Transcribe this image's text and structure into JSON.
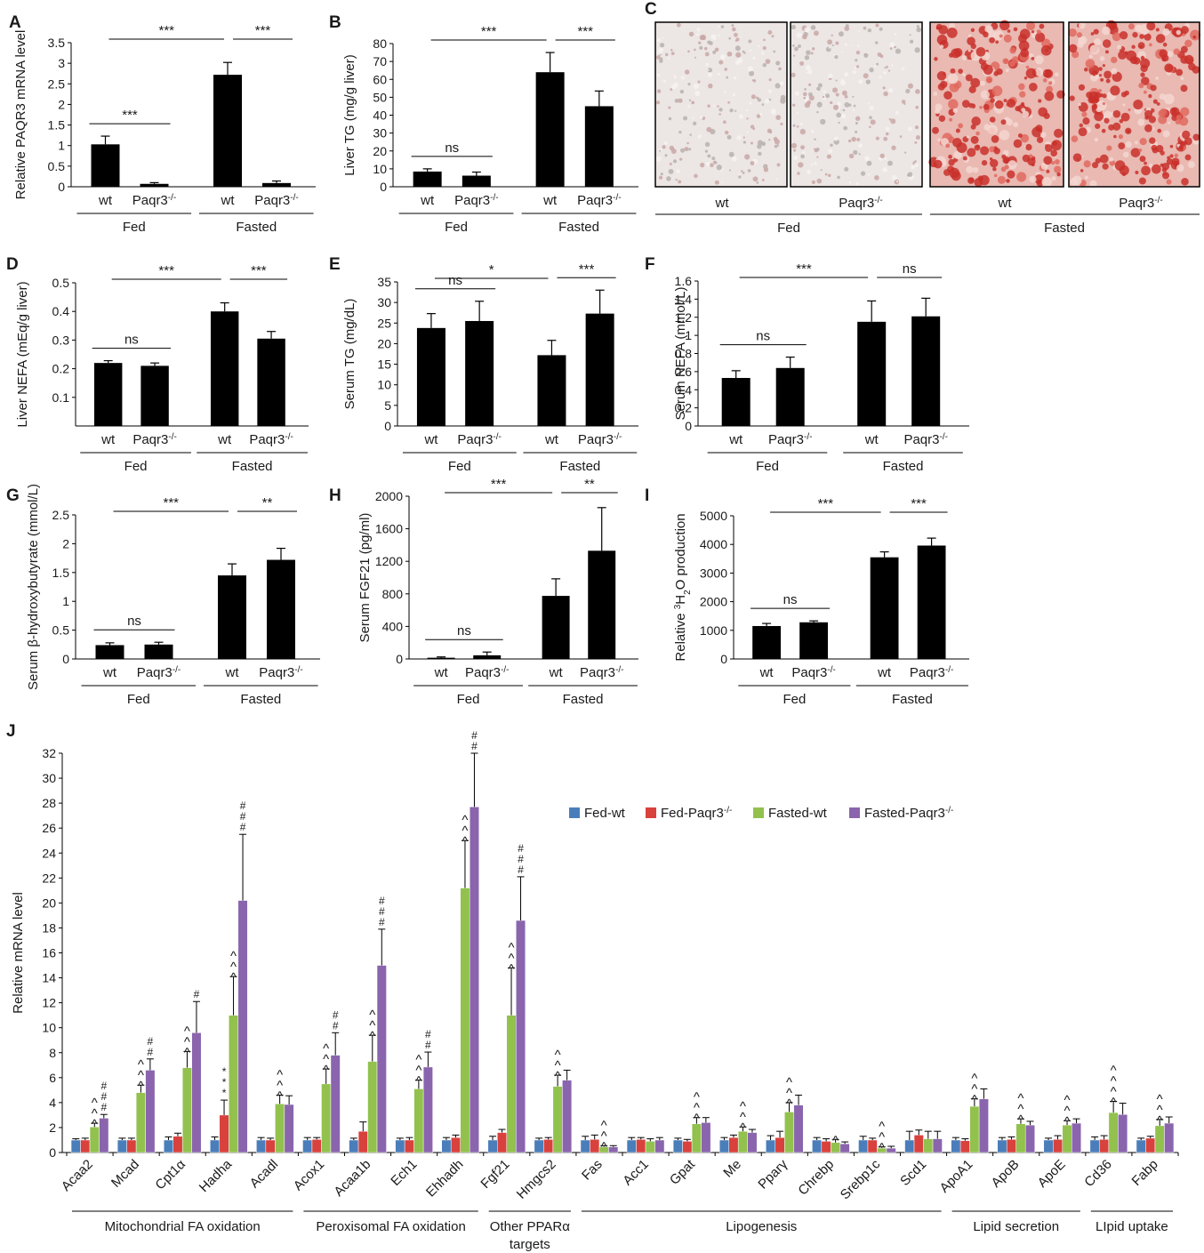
{
  "figure": {
    "group_labels": {
      "fed": "Fed",
      "fasted": "Fasted"
    },
    "genotype_labels": {
      "wt": "wt",
      "ko_base": "Paqr3",
      "ko_sup": "-/-"
    }
  },
  "colors": {
    "bar_black": "#000000",
    "fed_wt": "#4a7ebb",
    "fed_paqr3": "#d9413d",
    "fasted_wt": "#92c14e",
    "fasted_paqr3": "#8a65ad"
  },
  "panel_c": {
    "letter": "C",
    "images": [
      {
        "stain": "light",
        "color_hint": "#d8c8c6"
      },
      {
        "stain": "light",
        "color_hint": "#d6ccca"
      },
      {
        "stain": "heavy",
        "color_hint": "#c8403a"
      },
      {
        "stain": "heavy",
        "color_hint": "#c45a52"
      }
    ]
  },
  "chart_data": [
    {
      "id": "A",
      "type": "bar",
      "letter": "A",
      "ylabel": "Relative PAQR3 mRNA level",
      "ylim": [
        0,
        3.5
      ],
      "yticks": [
        "0",
        "0.5",
        "1",
        "1.5",
        "2",
        "2.5",
        "3",
        "3.5"
      ],
      "categories": [
        "wt",
        "Paqr3-/-",
        "wt",
        "Paqr3-/-"
      ],
      "values": [
        1.03,
        0.07,
        2.72,
        0.09
      ],
      "errors": [
        0.2,
        0.03,
        0.3,
        0.05
      ],
      "significance": [
        {
          "from": 0,
          "to": 1,
          "label": "***"
        },
        {
          "from": 0,
          "to": 2,
          "label": "***"
        },
        {
          "from": 2,
          "to": 3,
          "label": "***"
        }
      ]
    },
    {
      "id": "B",
      "type": "bar",
      "letter": "B",
      "ylabel": "Liver TG (mg/g liver)",
      "ylim": [
        0,
        80
      ],
      "yticks": [
        "0",
        "10",
        "20",
        "30",
        "40",
        "50",
        "60",
        "70",
        "80"
      ],
      "categories": [
        "wt",
        "Paqr3-/-",
        "wt",
        "Paqr3-/-"
      ],
      "values": [
        8.5,
        6.2,
        64,
        45
      ],
      "errors": [
        1.5,
        2,
        11,
        8.5
      ],
      "significance": [
        {
          "from": 0,
          "to": 1,
          "label": "ns"
        },
        {
          "from": 0,
          "to": 2,
          "label": "***"
        },
        {
          "from": 2,
          "to": 3,
          "label": "***"
        }
      ]
    },
    {
      "id": "D",
      "type": "bar",
      "letter": "D",
      "ylabel": "Liver NEFA (mEq/g liver)",
      "ylim": [
        0,
        0.5
      ],
      "yticks": [
        "0.1",
        "0.2",
        "0.3",
        "0.4",
        "0.5"
      ],
      "categories": [
        "wt",
        "Paqr3-/-",
        "wt",
        "Paqr3-/-"
      ],
      "values": [
        0.22,
        0.21,
        0.4,
        0.305
      ],
      "errors": [
        0.008,
        0.01,
        0.03,
        0.025
      ],
      "significance": [
        {
          "from": 0,
          "to": 1,
          "label": "ns"
        },
        {
          "from": 0,
          "to": 2,
          "label": "***"
        },
        {
          "from": 2,
          "to": 3,
          "label": "***"
        }
      ]
    },
    {
      "id": "E",
      "type": "bar",
      "letter": "E",
      "ylabel": "Serum TG (mg/dL)",
      "ylim": [
        0,
        35
      ],
      "yticks": [
        "0",
        "5",
        "10",
        "15",
        "20",
        "25",
        "30",
        "35"
      ],
      "categories": [
        "wt",
        "Paqr3-/-",
        "wt",
        "Paqr3-/-"
      ],
      "values": [
        23.8,
        25.5,
        17.2,
        27.3
      ],
      "errors": [
        3.5,
        4.8,
        3.6,
        5.7
      ],
      "significance": [
        {
          "from": 0,
          "to": 1,
          "label": "ns"
        },
        {
          "from": 0,
          "to": 2,
          "label": "*"
        },
        {
          "from": 2,
          "to": 3,
          "label": "***"
        }
      ]
    },
    {
      "id": "F",
      "type": "bar",
      "letter": "F",
      "ylabel": "Serum NEFA (mmol/L)",
      "ylim": [
        0,
        1.6
      ],
      "yticks": [
        "0",
        "0.2",
        "0.4",
        "0.6",
        "0.8",
        "1",
        "1.2",
        "1.4",
        "1.6"
      ],
      "categories": [
        "wt",
        "Paqr3-/-",
        "wt",
        "Paqr3-/-"
      ],
      "values": [
        0.53,
        0.64,
        1.15,
        1.21
      ],
      "errors": [
        0.08,
        0.12,
        0.23,
        0.2
      ],
      "significance": [
        {
          "from": 0,
          "to": 1,
          "label": "ns"
        },
        {
          "from": 0,
          "to": 2,
          "label": "***"
        },
        {
          "from": 2,
          "to": 3,
          "label": "ns"
        }
      ]
    },
    {
      "id": "G",
      "type": "bar",
      "letter": "G",
      "ylabel": "Serum β-hydroxybutyrate (mmol/L)",
      "ylim": [
        0,
        2.5
      ],
      "yticks": [
        "0",
        "0.5",
        "1",
        "1.5",
        "2",
        "2.5"
      ],
      "categories": [
        "wt",
        "Paqr3-/-",
        "wt",
        "Paqr3-/-"
      ],
      "values": [
        0.24,
        0.25,
        1.45,
        1.72
      ],
      "errors": [
        0.04,
        0.04,
        0.2,
        0.2
      ],
      "significance": [
        {
          "from": 0,
          "to": 1,
          "label": "ns"
        },
        {
          "from": 0,
          "to": 2,
          "label": "***"
        },
        {
          "from": 2,
          "to": 3,
          "label": "**"
        }
      ]
    },
    {
      "id": "H",
      "type": "bar",
      "letter": "H",
      "ylabel": "Serum FGF21 (pg/ml)",
      "ylim": [
        0,
        2000
      ],
      "yticks": [
        "0",
        "400",
        "800",
        "1200",
        "1600",
        "2000"
      ],
      "categories": [
        "wt",
        "Paqr3-/-",
        "wt",
        "Paqr3-/-"
      ],
      "values": [
        15,
        45,
        775,
        1330
      ],
      "errors": [
        10,
        40,
        210,
        530
      ],
      "significance": [
        {
          "from": 0,
          "to": 1,
          "label": "ns"
        },
        {
          "from": 0,
          "to": 2,
          "label": "***"
        },
        {
          "from": 2,
          "to": 3,
          "label": "**"
        }
      ]
    },
    {
      "id": "I",
      "type": "bar",
      "letter": "I",
      "ylabel_parts": [
        "Relative ",
        "3",
        "H",
        "2",
        "O production"
      ],
      "ylim": [
        0,
        5000
      ],
      "yticks": [
        "0",
        "1000",
        "2000",
        "3000",
        "4000",
        "5000"
      ],
      "categories": [
        "wt",
        "Paqr3-/-",
        "wt",
        "Paqr3-/-"
      ],
      "values": [
        1150,
        1280,
        3550,
        3960
      ],
      "errors": [
        90,
        50,
        190,
        260
      ],
      "significance": [
        {
          "from": 0,
          "to": 1,
          "label": "ns"
        },
        {
          "from": 0,
          "to": 2,
          "label": "***"
        },
        {
          "from": 2,
          "to": 3,
          "label": "***"
        }
      ]
    },
    {
      "id": "J",
      "type": "bar",
      "letter": "J",
      "ylabel": "Relative mRNA level",
      "ylim": [
        0,
        32
      ],
      "yticks": [
        "0",
        "2",
        "4",
        "6",
        "8",
        "10",
        "12",
        "14",
        "16",
        "18",
        "20",
        "22",
        "24",
        "26",
        "28",
        "30",
        "32"
      ],
      "legend": [
        "Fed-wt",
        "Fed-Paqr3-/-",
        "Fasted-wt",
        "Fasted-Paqr3-/-"
      ],
      "legend_display": [
        {
          "base": "Fed-wt",
          "sup": ""
        },
        {
          "base": "Fed-Paqr3",
          "sup": "-/-"
        },
        {
          "base": "Fasted-wt",
          "sup": ""
        },
        {
          "base": "Fasted-Paqr3",
          "sup": "-/-"
        }
      ],
      "categories": [
        "Acaa2",
        "Mcad",
        "Cpt1α",
        "Hadha",
        "Acadl",
        "Acox1",
        "Acaa1b",
        "Ech1",
        "Ehhadh",
        "Fgf21",
        "Hmgcs2",
        "Fas",
        "Acc1",
        "Gpat",
        "Me",
        "Pparγ",
        "Chrebp",
        "Srebp1c",
        "Scd1",
        "ApoA1",
        "ApoB",
        "ApoE",
        "Cd36",
        "Fabp"
      ],
      "series": [
        {
          "name": "Fed-wt",
          "values": [
            1,
            1,
            1,
            1,
            1,
            1,
            1,
            1,
            1,
            1,
            1,
            1,
            1,
            1,
            1,
            1,
            1,
            1,
            1,
            1,
            1,
            1,
            1,
            1
          ],
          "errors": [
            0.1,
            0.15,
            0.25,
            0.25,
            0.2,
            0.2,
            0.15,
            0.15,
            0.2,
            0.3,
            0.15,
            0.3,
            0.2,
            0.15,
            0.2,
            0.35,
            0.2,
            0.3,
            0.7,
            0.2,
            0.2,
            0.15,
            0.25,
            0.15
          ]
        },
        {
          "name": "Fed-Paqr3-/-",
          "values": [
            1,
            1,
            1.3,
            3,
            1,
            1.05,
            1.7,
            1,
            1.2,
            1.6,
            1.05,
            1.05,
            1.05,
            0.9,
            1.2,
            1.2,
            0.9,
            1,
            1.4,
            0.95,
            1.05,
            1.05,
            1.05,
            1.15
          ],
          "errors": [
            0.15,
            0.15,
            0.25,
            1.2,
            0.15,
            0.15,
            0.75,
            0.2,
            0.2,
            0.25,
            0.15,
            0.35,
            0.15,
            0.15,
            0.2,
            0.5,
            0.2,
            0.15,
            0.4,
            0.15,
            0.2,
            0.3,
            0.3,
            0.15
          ]
        },
        {
          "name": "Fasted-wt",
          "values": [
            2.05,
            4.8,
            6.8,
            11,
            3.9,
            5.5,
            7.3,
            5.1,
            21.2,
            11,
            5.3,
            0.45,
            0.9,
            2.3,
            1.7,
            3.25,
            0.8,
            0.35,
            1.1,
            3.7,
            2.3,
            2.2,
            3.2,
            2.15
          ],
          "errors": [
            0.3,
            0.6,
            1.3,
            3.1,
            0.7,
            1.2,
            2.1,
            0.7,
            3.8,
            3.8,
            0.9,
            0.1,
            0.2,
            0.5,
            0.35,
            0.75,
            0.25,
            0.1,
            0.6,
            0.6,
            0.4,
            0.35,
            0.9,
            0.5
          ]
        },
        {
          "name": "Fasted-Paqr3-/-",
          "values": [
            2.75,
            6.6,
            9.6,
            20.2,
            3.85,
            7.8,
            15,
            6.85,
            27.7,
            18.6,
            5.8,
            0.45,
            1,
            2.4,
            1.6,
            3.8,
            0.7,
            0.35,
            1.1,
            4.3,
            2.2,
            2.35,
            3.05,
            2.35
          ]
        },
        {
          "name": "_errors_fasted_paqr3",
          "values": [
            0.3,
            0.9,
            2.5,
            5.3,
            0.7,
            1.8,
            2.9,
            1.2,
            4.3,
            3.5,
            0.8,
            0.1,
            0.2,
            0.4,
            0.25,
            0.8,
            0.15,
            0.15,
            0.6,
            0.8,
            0.3,
            0.35,
            0.9,
            0.5
          ]
        }
      ],
      "markers": [
        {
          "cat": 0,
          "s": 2,
          "text": "^^^"
        },
        {
          "cat": 0,
          "s": 3,
          "text": "###"
        },
        {
          "cat": 1,
          "s": 2,
          "text": "^^^"
        },
        {
          "cat": 1,
          "s": 3,
          "text": "##"
        },
        {
          "cat": 2,
          "s": 2,
          "text": "^^^"
        },
        {
          "cat": 2,
          "s": 3,
          "text": "#"
        },
        {
          "cat": 3,
          "s": 1,
          "text": "***"
        },
        {
          "cat": 3,
          "s": 2,
          "text": "^^^"
        },
        {
          "cat": 3,
          "s": 3,
          "text": "###"
        },
        {
          "cat": 4,
          "s": 2,
          "text": "^^^"
        },
        {
          "cat": 5,
          "s": 2,
          "text": "^^^"
        },
        {
          "cat": 5,
          "s": 3,
          "text": "##"
        },
        {
          "cat": 6,
          "s": 2,
          "text": "^^^"
        },
        {
          "cat": 6,
          "s": 3,
          "text": "###"
        },
        {
          "cat": 7,
          "s": 2,
          "text": "^^^"
        },
        {
          "cat": 7,
          "s": 3,
          "text": "##"
        },
        {
          "cat": 8,
          "s": 2,
          "text": "^^^"
        },
        {
          "cat": 8,
          "s": 3,
          "text": "##"
        },
        {
          "cat": 9,
          "s": 2,
          "text": "^^^"
        },
        {
          "cat": 9,
          "s": 3,
          "text": "###"
        },
        {
          "cat": 10,
          "s": 2,
          "text": "^^^"
        },
        {
          "cat": 11,
          "s": 2,
          "text": "^^^"
        },
        {
          "cat": 13,
          "s": 2,
          "text": "^^^"
        },
        {
          "cat": 14,
          "s": 2,
          "text": "^^^"
        },
        {
          "cat": 15,
          "s": 2,
          "text": "^^^"
        },
        {
          "cat": 16,
          "s": 2,
          "text": "^"
        },
        {
          "cat": 17,
          "s": 2,
          "text": "^^^"
        },
        {
          "cat": 19,
          "s": 2,
          "text": "^^^"
        },
        {
          "cat": 20,
          "s": 2,
          "text": "^^^"
        },
        {
          "cat": 21,
          "s": 2,
          "text": "^^^"
        },
        {
          "cat": 22,
          "s": 2,
          "text": "^^^^"
        },
        {
          "cat": 23,
          "s": 2,
          "text": "^^^"
        }
      ],
      "groups": [
        {
          "label": "Mitochondrial FA oxidation",
          "from": 0,
          "to": 4
        },
        {
          "label": "Peroxisomal FA oxidation",
          "from": 5,
          "to": 8
        },
        {
          "label": "Other PPARα",
          "label2": "targets",
          "from": 9,
          "to": 10
        },
        {
          "label": "Lipogenesis",
          "from": 11,
          "to": 18
        },
        {
          "label": "Lipid secretion",
          "from": 19,
          "to": 21
        },
        {
          "label": "LIpid uptake",
          "from": 22,
          "to": 23
        }
      ]
    }
  ]
}
